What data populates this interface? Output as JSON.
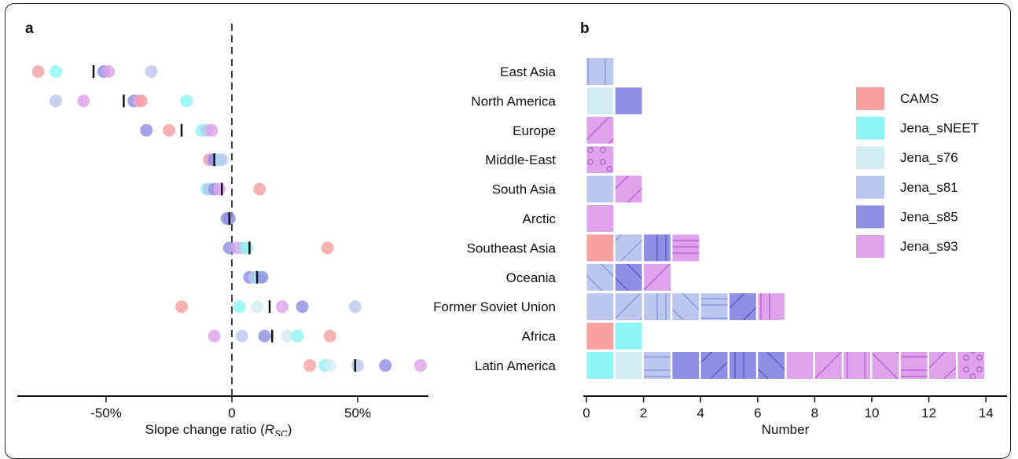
{
  "panel_a_label": "a",
  "panel_b_label": "b",
  "chart_data": [
    {
      "type": "scatter",
      "panel": "a",
      "xlabel_main": "Slope change ratio (",
      "xlabel_italic": "R",
      "xlabel_sub": "SC",
      "xlabel_close": ")",
      "xlim": [
        -85,
        80
      ],
      "x_ticks": [
        -50,
        0,
        50
      ],
      "x_tick_labels": [
        "-50%",
        "0",
        "50%"
      ],
      "zero_line": "dashed",
      "series_colors": {
        "CAMS": "#f7a1a1",
        "Jena_sNEET": "#8ff4f4",
        "Jena_s76": "#d3ecf4",
        "Jena_s81": "#bcc7ef",
        "Jena_s85": "#8f8fe3",
        "Jena_s93": "#dfa3eb"
      },
      "rows": [
        {
          "region": "East Asia",
          "mean": -55,
          "points": [
            {
              "s": "CAMS",
              "x": -77
            },
            {
              "s": "Jena_sNEET",
              "x": -70
            },
            {
              "s": "Jena_s85",
              "x": -51
            },
            {
              "s": "Jena_s93",
              "x": -49
            },
            {
              "s": "Jena_s81",
              "x": -32
            }
          ]
        },
        {
          "region": "North America",
          "mean": -43,
          "points": [
            {
              "s": "Jena_s81",
              "x": -70
            },
            {
              "s": "Jena_s93",
              "x": -59
            },
            {
              "s": "Jena_s85",
              "x": -39
            },
            {
              "s": "Jena_s93",
              "x": -37
            },
            {
              "s": "CAMS",
              "x": -36
            },
            {
              "s": "Jena_sNEET",
              "x": -18
            }
          ]
        },
        {
          "region": "Europe",
          "mean": -20,
          "points": [
            {
              "s": "Jena_s85",
              "x": -34
            },
            {
              "s": "CAMS",
              "x": -25
            },
            {
              "s": "Jena_sNEET",
              "x": -12
            },
            {
              "s": "Jena_s81",
              "x": -10
            },
            {
              "s": "Jena_s93",
              "x": -8
            }
          ]
        },
        {
          "region": "Middle-East",
          "mean": -7,
          "points": [
            {
              "s": "CAMS",
              "x": -9
            },
            {
              "s": "Jena_s93",
              "x": -8
            },
            {
              "s": "Jena_s85",
              "x": -7
            },
            {
              "s": "Jena_sNEET",
              "x": -5
            },
            {
              "s": "Jena_s81",
              "x": -4
            }
          ]
        },
        {
          "region": "South Asia",
          "mean": -4,
          "points": [
            {
              "s": "Jena_sNEET",
              "x": -10
            },
            {
              "s": "Jena_s81",
              "x": -9
            },
            {
              "s": "Jena_s85",
              "x": -7
            },
            {
              "s": "Jena_s93",
              "x": -5
            },
            {
              "s": "CAMS",
              "x": 11
            }
          ]
        },
        {
          "region": "Arctic",
          "mean": -1,
          "points": [
            {
              "s": "Jena_s85",
              "x": -2
            },
            {
              "s": "Jena_s85",
              "x": -1
            }
          ]
        },
        {
          "region": "Southeast Asia",
          "mean": 7,
          "points": [
            {
              "s": "Jena_s85",
              "x": -1
            },
            {
              "s": "Jena_s93",
              "x": 2
            },
            {
              "s": "Jena_s81",
              "x": 4
            },
            {
              "s": "Jena_sNEET",
              "x": 6
            },
            {
              "s": "CAMS",
              "x": 38
            }
          ]
        },
        {
          "region": "Oceania",
          "mean": 10,
          "points": [
            {
              "s": "Jena_s85",
              "x": 7
            },
            {
              "s": "Jena_s81",
              "x": 9
            },
            {
              "s": "Jena_sNEET",
              "x": 11
            },
            {
              "s": "Jena_s85",
              "x": 12
            }
          ]
        },
        {
          "region": "Former Soviet Union",
          "mean": 15,
          "points": [
            {
              "s": "CAMS",
              "x": -20
            },
            {
              "s": "Jena_sNEET",
              "x": 3
            },
            {
              "s": "Jena_s76",
              "x": 10
            },
            {
              "s": "Jena_s93",
              "x": 20
            },
            {
              "s": "Jena_s85",
              "x": 28
            },
            {
              "s": "Jena_s81",
              "x": 49
            }
          ]
        },
        {
          "region": "Africa",
          "mean": 16,
          "points": [
            {
              "s": "Jena_s93",
              "x": -7
            },
            {
              "s": "Jena_s81",
              "x": 4
            },
            {
              "s": "Jena_s85",
              "x": 13
            },
            {
              "s": "Jena_s76",
              "x": 22
            },
            {
              "s": "Jena_sNEET",
              "x": 26
            },
            {
              "s": "CAMS",
              "x": 39
            }
          ]
        },
        {
          "region": "Latin America",
          "mean": 49,
          "points": [
            {
              "s": "CAMS",
              "x": 31
            },
            {
              "s": "Jena_sNEET",
              "x": 37
            },
            {
              "s": "Jena_s76",
              "x": 39
            },
            {
              "s": "Jena_s81",
              "x": 50
            },
            {
              "s": "Jena_s85",
              "x": 61
            },
            {
              "s": "Jena_s93",
              "x": 75
            }
          ]
        }
      ]
    },
    {
      "type": "bar",
      "panel": "b",
      "orientation": "horizontal-stacked",
      "xlabel": "Number",
      "xlim": [
        0,
        14.5
      ],
      "x_ticks": [
        0,
        2,
        4,
        6,
        8,
        10,
        12,
        14
      ],
      "legend_position": "top-right",
      "legend": [
        {
          "name": "CAMS",
          "color": "#f7a1a1"
        },
        {
          "name": "Jena_sNEET",
          "color": "#8ff4f4"
        },
        {
          "name": "Jena_s76",
          "color": "#d3ecf4"
        },
        {
          "name": "Jena_s81",
          "color": "#bcc7ef"
        },
        {
          "name": "Jena_s85",
          "color": "#8f8fe3"
        },
        {
          "name": "Jena_s93",
          "color": "#dfa3eb"
        }
      ],
      "categories": [
        "East Asia",
        "North America",
        "Europe",
        "Middle-East",
        "South Asia",
        "Arctic",
        "Southeast Asia",
        "Oceania",
        "Former Soviet Union",
        "Africa",
        "Latin America"
      ],
      "totals": [
        1,
        2,
        1,
        1,
        2,
        1,
        4,
        3,
        7,
        2,
        14
      ],
      "segments": [
        [
          {
            "s": "Jena_s81",
            "p": "vert"
          }
        ],
        [
          {
            "s": "Jena_s76",
            "p": ""
          },
          {
            "s": "Jena_s85",
            "p": ""
          }
        ],
        [
          {
            "s": "Jena_s93",
            "p": "fwd"
          }
        ],
        [
          {
            "s": "Jena_s93",
            "p": "dots"
          }
        ],
        [
          {
            "s": "Jena_s81",
            "p": ""
          },
          {
            "s": "Jena_s93",
            "p": "fwd"
          }
        ],
        [
          {
            "s": "Jena_s93",
            "p": ""
          }
        ],
        [
          {
            "s": "CAMS",
            "p": ""
          },
          {
            "s": "Jena_s81",
            "p": "fwd"
          },
          {
            "s": "Jena_s85",
            "p": "vert"
          },
          {
            "s": "Jena_s93",
            "p": "horiz"
          }
        ],
        [
          {
            "s": "Jena_s81",
            "p": "back"
          },
          {
            "s": "Jena_s85",
            "p": "back"
          },
          {
            "s": "Jena_s93",
            "p": "fwd"
          }
        ],
        [
          {
            "s": "Jena_s81",
            "p": ""
          },
          {
            "s": "Jena_s81",
            "p": "fwd"
          },
          {
            "s": "Jena_s81",
            "p": "vert"
          },
          {
            "s": "Jena_s81",
            "p": "back"
          },
          {
            "s": "Jena_s81",
            "p": "horiz"
          },
          {
            "s": "Jena_s85",
            "p": "fwd"
          },
          {
            "s": "Jena_s93",
            "p": "vert"
          }
        ],
        [
          {
            "s": "CAMS",
            "p": ""
          },
          {
            "s": "Jena_sNEET",
            "p": ""
          }
        ],
        [
          {
            "s": "Jena_sNEET",
            "p": ""
          },
          {
            "s": "Jena_s76",
            "p": ""
          },
          {
            "s": "Jena_s81",
            "p": "horiz"
          },
          {
            "s": "Jena_s85",
            "p": ""
          },
          {
            "s": "Jena_s85",
            "p": "fwd"
          },
          {
            "s": "Jena_s85",
            "p": "vert"
          },
          {
            "s": "Jena_s85",
            "p": "back"
          },
          {
            "s": "Jena_s93",
            "p": ""
          },
          {
            "s": "Jena_s93",
            "p": "fwd"
          },
          {
            "s": "Jena_s93",
            "p": "vert"
          },
          {
            "s": "Jena_s93",
            "p": "back"
          },
          {
            "s": "Jena_s93",
            "p": "horiz"
          },
          {
            "s": "Jena_s93",
            "p": "fwd"
          },
          {
            "s": "Jena_s93",
            "p": "dots"
          }
        ]
      ]
    }
  ]
}
